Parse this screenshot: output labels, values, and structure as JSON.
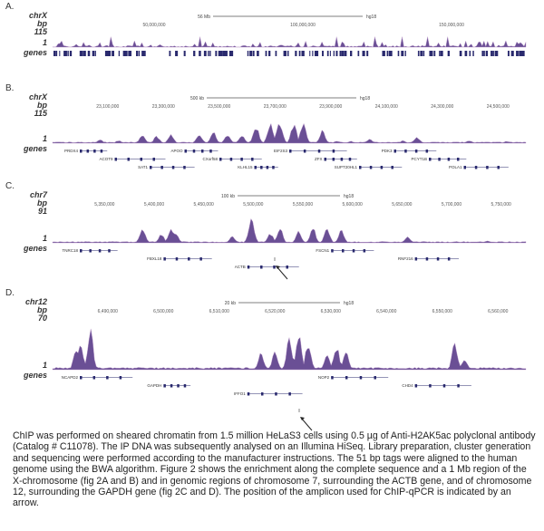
{
  "panels": [
    {
      "label": "A.",
      "chrom": "chrX",
      "unit": "bp",
      "ymax_label": "115",
      "ymin_label": "1",
      "genes_label": "genes",
      "scale_label": "56 Mb",
      "assembly": "hg18",
      "ticks": [
        "50,000,000",
        "100,000,000",
        "150,000,000"
      ],
      "gap": true,
      "peaks": [],
      "genes": [],
      "arrow": false
    },
    {
      "label": "B.",
      "chrom": "chrX",
      "unit": "bp",
      "ymax_label": "115",
      "ymin_label": "1",
      "genes_label": "genes",
      "scale_label": "500 kb",
      "assembly": "hg18",
      "ticks": [
        "23,100,000",
        "23,300,000",
        "23,500,000",
        "23,700,000",
        "23,900,000",
        "24,100,000",
        "24,300,000",
        "24,500,000"
      ],
      "gap": false,
      "peaks": [
        [
          0.1,
          0.15
        ],
        [
          0.14,
          0.12
        ],
        [
          0.19,
          0.35
        ],
        [
          0.22,
          0.3
        ],
        [
          0.25,
          0.35
        ],
        [
          0.31,
          0.4
        ],
        [
          0.34,
          0.45
        ],
        [
          0.37,
          0.4
        ],
        [
          0.4,
          0.35
        ],
        [
          0.43,
          0.7
        ],
        [
          0.46,
          0.9
        ],
        [
          0.48,
          0.95
        ],
        [
          0.51,
          0.85
        ],
        [
          0.53,
          0.9
        ],
        [
          0.57,
          0.55
        ],
        [
          0.63,
          0.08
        ],
        [
          0.6,
          0.08
        ],
        [
          0.67,
          0.18
        ],
        [
          0.74,
          0.1
        ],
        [
          0.77,
          0.25
        ],
        [
          0.88,
          0.12
        ],
        [
          0.96,
          0.08
        ]
      ],
      "genes": [
        "PRDX4",
        "ACOT9",
        "SAT1",
        "APOO",
        "CXorf58",
        "KLHL15",
        "EIF2S3",
        "ZFX",
        "SUPT20HL1",
        "PDK3",
        "PCYT1B",
        "POLA1"
      ],
      "arrow": false
    },
    {
      "label": "C.",
      "chrom": "chr7",
      "unit": "bp",
      "ymax_label": "91",
      "ymin_label": "1",
      "genes_label": "genes",
      "scale_label": "100 kb",
      "assembly": "hg18",
      "ticks": [
        "5,350,000",
        "5,400,000",
        "5,450,000",
        "5,500,000",
        "5,550,000",
        "5,600,000",
        "5,650,000",
        "5,700,000",
        "5,750,000"
      ],
      "gap": false,
      "peaks": [
        [
          0.19,
          0.6
        ],
        [
          0.23,
          0.35
        ],
        [
          0.25,
          0.55
        ],
        [
          0.26,
          0.45
        ],
        [
          0.38,
          0.25
        ],
        [
          0.42,
          1.0
        ],
        [
          0.46,
          0.4
        ],
        [
          0.48,
          0.6
        ],
        [
          0.52,
          0.45
        ],
        [
          0.55,
          0.6
        ],
        [
          0.58,
          0.55
        ],
        [
          0.61,
          0.5
        ],
        [
          0.75,
          0.25
        ],
        [
          0.92,
          0.08
        ]
      ],
      "genes": [
        "TNRC18",
        "FBXL18",
        "ACTB",
        "FSCN1",
        "RNF216"
      ],
      "arrow": true
    },
    {
      "label": "D.",
      "chrom": "chr12",
      "unit": "bp",
      "ymax_label": "70",
      "ymin_label": "1",
      "genes_label": "genes",
      "scale_label": "20 kb",
      "assembly": "hg18",
      "ticks": [
        "6,490,000",
        "6,500,000",
        "6,510,000",
        "6,520,000",
        "6,530,000",
        "6,540,000",
        "6,550,000",
        "6,560,000"
      ],
      "gap": false,
      "peaks": [
        [
          0.05,
          0.5
        ],
        [
          0.06,
          0.55
        ],
        [
          0.08,
          0.9
        ],
        [
          0.44,
          0.4
        ],
        [
          0.47,
          0.4
        ],
        [
          0.5,
          0.75
        ],
        [
          0.52,
          0.85
        ],
        [
          0.54,
          0.6
        ],
        [
          0.58,
          0.35
        ],
        [
          0.6,
          0.55
        ],
        [
          0.62,
          0.4
        ],
        [
          0.85,
          0.65
        ],
        [
          0.87,
          0.25
        ]
      ],
      "genes": [
        "NCAPD2",
        "GAPDH",
        "IFFO1",
        "NOP2",
        "CHD4"
      ],
      "arrow": true
    }
  ],
  "colors": {
    "signal": "#5a3d8a",
    "signal_light": "#b58fc4",
    "genes": "#2a2a6e"
  },
  "caption": "ChIP was performed on sheared chromatin from 1.5 million HeLaS3 cells using 0.5 µg of Anti-H2AK5ac polyclonal antibody (Catalog # C11078). The IP DNA was subsequently analysed on an Illumina HiSeq. Library preparation, cluster generation and sequencing were performed according to the manufacturer instructions. The 51 bp tags were aligned to the human genome using the BWA algorithm. Figure 2 shows the enrichment along the complete sequence and a 1 Mb region of the X-chromosome (fig 2A and B) and in genomic regions of chromosome 7, surrounding the ACTB gene, and of chromosome 12, surrounding the GAPDH gene (fig 2C and D). The position of the amplicon used for ChIP-qPCR is indicated by an arrow."
}
